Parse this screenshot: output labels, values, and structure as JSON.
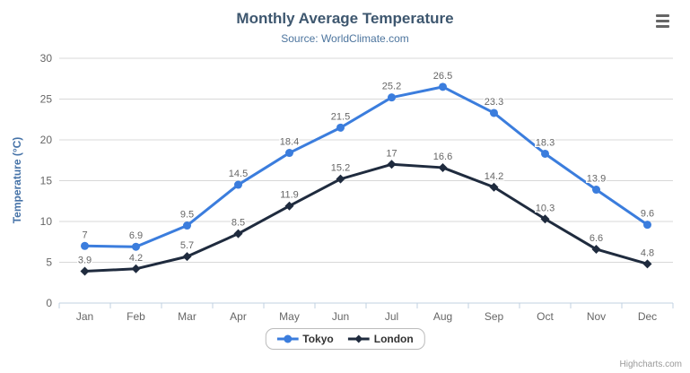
{
  "chart": {
    "credits_label": "Highcharts.com",
    "context_menu_icon": "hamburger-menu-icon"
  },
  "chart_data": {
    "type": "line",
    "title": "Monthly Average Temperature",
    "subtitle": "Source: WorldClimate.com",
    "xlabel": "",
    "ylabel": "Temperature (°C)",
    "categories": [
      "Jan",
      "Feb",
      "Mar",
      "Apr",
      "May",
      "Jun",
      "Jul",
      "Aug",
      "Sep",
      "Oct",
      "Nov",
      "Dec"
    ],
    "series": [
      {
        "name": "Tokyo",
        "color": "#3b7ddd",
        "marker": "circle",
        "values": [
          7.0,
          6.9,
          9.5,
          14.5,
          18.4,
          21.5,
          25.2,
          26.5,
          23.3,
          18.3,
          13.9,
          9.6
        ],
        "labels": [
          "7",
          "6.9",
          "9.5",
          "14.5",
          "18.4",
          "21.5",
          "25.2",
          "26.5",
          "23.3",
          "18.3",
          "13.9",
          "9.6"
        ]
      },
      {
        "name": "London",
        "color": "#1f2b3e",
        "marker": "diamond",
        "values": [
          3.9,
          4.2,
          5.7,
          8.5,
          11.9,
          15.2,
          17.0,
          16.6,
          14.2,
          10.3,
          6.6,
          4.8
        ],
        "labels": [
          "3.9",
          "4.2",
          "5.7",
          "8.5",
          "11.9",
          "15.2",
          "17",
          "16.6",
          "14.2",
          "10.3",
          "6.6",
          "4.8"
        ]
      }
    ],
    "ylim": [
      0,
      30
    ],
    "yticks": [
      0,
      5,
      10,
      15,
      20,
      25,
      30
    ],
    "grid": true,
    "legend_position": "bottom-center"
  },
  "colors": {
    "background": "#ffffff",
    "title": "#3e576f",
    "subtitle": "#4d759e",
    "axis_title": "#4572a7",
    "axis_label": "#666666",
    "data_label": "#666666",
    "data_label_halo": "#ffffff",
    "grid_line": "#d8d8d8",
    "axis_line": "#c0d0e0",
    "legend_text": "#333333",
    "legend_border": "#bbbbbb",
    "credits": "#999999",
    "menu_icon": "#666666"
  }
}
